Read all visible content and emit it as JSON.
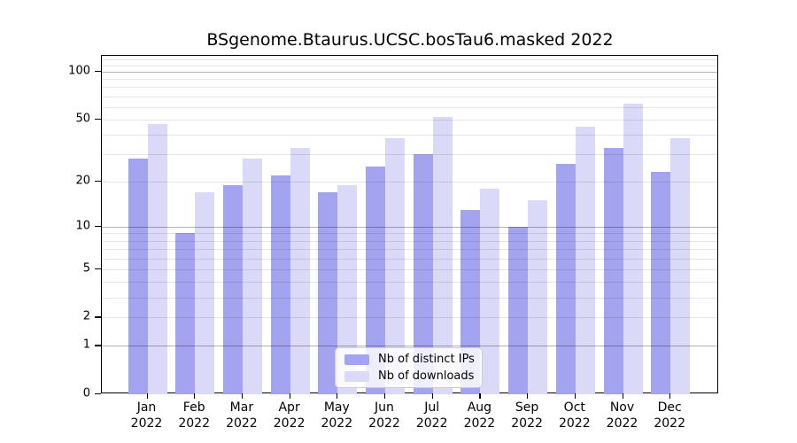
{
  "chart_data": {
    "type": "bar",
    "title": "BSgenome.Btaurus.UCSC.bosTau6.masked 2022",
    "categories": [
      "Jan",
      "Feb",
      "Mar",
      "Apr",
      "May",
      "Jun",
      "Jul",
      "Aug",
      "Sep",
      "Oct",
      "Nov",
      "Dec"
    ],
    "year": "2022",
    "series": [
      {
        "name": "Nb of distinct IPs",
        "color": "#a3a3f0",
        "values": [
          28,
          9,
          19,
          22,
          17,
          25,
          30,
          13,
          10,
          26,
          33,
          23
        ]
      },
      {
        "name": "Nb of downloads",
        "color": "#dadaf8",
        "values": [
          47,
          17,
          28,
          33,
          19,
          38,
          52,
          18,
          15,
          45,
          63,
          38
        ]
      }
    ],
    "xlabel": "",
    "ylabel": "",
    "yscale": "log1p",
    "ylim": [
      0,
      126
    ],
    "yticks": [
      {
        "value": 0,
        "label": "0"
      },
      {
        "value": 1,
        "label": "1"
      },
      {
        "value": 2,
        "label": "2"
      },
      {
        "value": 5,
        "label": "5"
      },
      {
        "value": 10,
        "label": "10"
      },
      {
        "value": 20,
        "label": "20"
      },
      {
        "value": 50,
        "label": "50"
      },
      {
        "value": 100,
        "label": "100"
      }
    ],
    "major_gridlines": [
      1,
      10,
      100
    ],
    "minor_gridlines": [
      2,
      3,
      4,
      5,
      6,
      7,
      8,
      9,
      20,
      30,
      40,
      50,
      60,
      70,
      80,
      90,
      110,
      120
    ],
    "grid": true,
    "legend_position": "lower center"
  },
  "colors": {
    "distinct_ips": "#a3a3f0",
    "downloads": "#dadaf8",
    "grid_major": "rgba(0,0,0,0.30)",
    "grid_minor": "rgba(0,0,0,0.10)",
    "spine": "#000000",
    "background": "#ffffff"
  }
}
